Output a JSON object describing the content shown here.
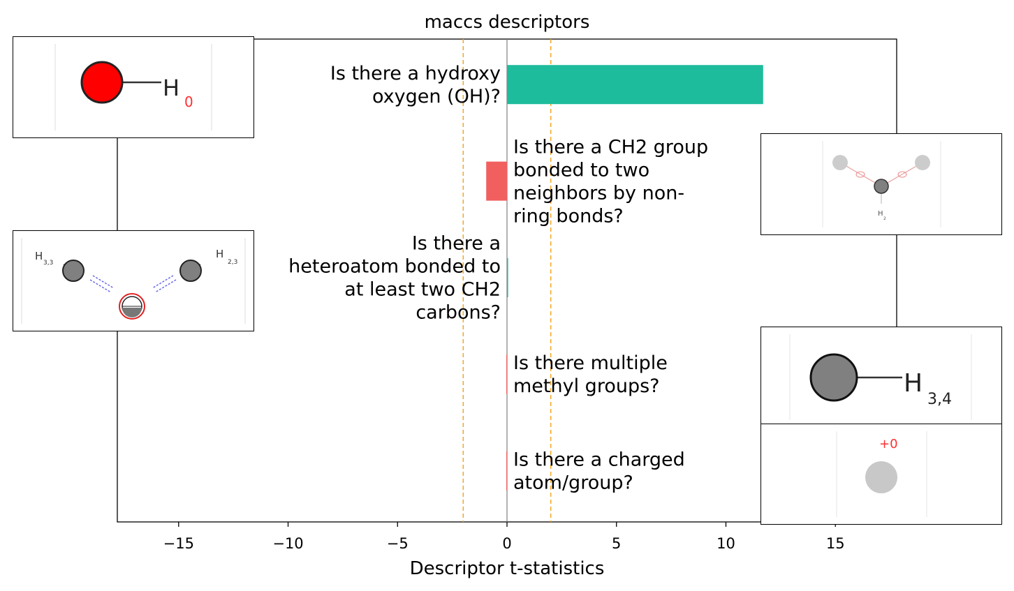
{
  "chart_data": {
    "type": "bar",
    "orientation": "horizontal",
    "title": "maccs descriptors",
    "xlabel": "Descriptor t-statistics",
    "ylabel": "",
    "xlim": [
      -17.8,
      17.8
    ],
    "xticks": [
      -15,
      -10,
      -5,
      0,
      5,
      10,
      15
    ],
    "xtick_labels": [
      "−15",
      "−10",
      "−5",
      "0",
      "5",
      "10",
      "15"
    ],
    "threshold_lines": [
      -2,
      2
    ],
    "categories": [
      "Is there a hydroxy oxygen (OH)?",
      "Is there a CH2 group bonded to two neighbors by non-ring bonds?",
      "Is there a heteroatom bonded to at least two CH2 carbons?",
      "Is there multiple methyl groups?",
      "Is there a charged atom/group?"
    ],
    "label_lines": [
      [
        "Is there a hydroxy",
        "oxygen (OH)?"
      ],
      [
        "Is there a CH2 group",
        "bonded to two",
        "neighbors by non-",
        "ring bonds?"
      ],
      [
        "Is there a",
        "heteroatom bonded to",
        "at least two CH2",
        "carbons?"
      ],
      [
        "Is there multiple",
        "methyl groups?"
      ],
      [
        "Is there a charged",
        "atom/group?"
      ]
    ],
    "values": [
      11.7,
      -0.95,
      0.05,
      -0.03,
      -0.03
    ],
    "colors": {
      "positive": "#1dbc9c",
      "negative": "#f15f5f",
      "threshold": "#f5a623",
      "zero_line": "#808080"
    },
    "grid": false,
    "legend": "none"
  },
  "insets": {
    "hydroxy": {
      "atom_label": "H",
      "sub_label": "0"
    },
    "ch2": {
      "atom_label": "H",
      "sub_label": "2"
    },
    "heteroatom": {
      "left_label": "H",
      "left_sub": "3,3",
      "right_label": "H",
      "right_sub": "2,3"
    },
    "methyl": {
      "atom_label": "H",
      "sub_label": "3,4"
    },
    "charged": {
      "charge_label": "+0"
    }
  }
}
